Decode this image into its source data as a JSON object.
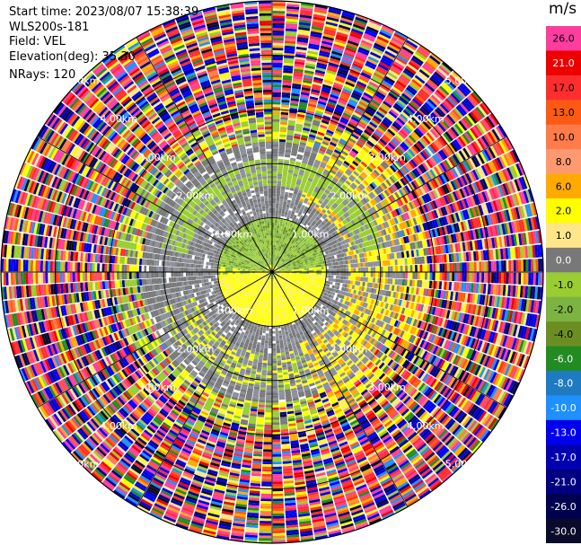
{
  "header": {
    "start_time": "Start time: 2023/08/07 15:38:39",
    "instrument": "WLS200s-181",
    "field": "Field: VEL",
    "elevation": "Elevation(deg): 35.30",
    "nrays": "NRays: 120"
  },
  "colorbar": {
    "unit": "m/s",
    "entries": [
      {
        "label": "26.0",
        "color": "#ff3d9e"
      },
      {
        "label": "21.0",
        "color": "#ee0000"
      },
      {
        "label": "17.0",
        "color": "#ff2e2e"
      },
      {
        "label": "13.0",
        "color": "#ff5a14"
      },
      {
        "label": "10.0",
        "color": "#ff7b4a"
      },
      {
        "label": "8.0",
        "color": "#ff9a70"
      },
      {
        "label": "6.0",
        "color": "#ffaa00"
      },
      {
        "label": "2.0",
        "color": "#ffff00"
      },
      {
        "label": "1.0",
        "color": "#ffe68a"
      },
      {
        "label": "0.0",
        "color": "#787878"
      },
      {
        "label": "-1.0",
        "color": "#9acd32"
      },
      {
        "label": "-2.0",
        "color": "#7cb342"
      },
      {
        "label": "-4.0",
        "color": "#6b8e23"
      },
      {
        "label": "-6.0",
        "color": "#228b22"
      },
      {
        "label": "-8.0",
        "color": "#1e7bc2"
      },
      {
        "label": "-10.0",
        "color": "#1e90ff"
      },
      {
        "label": "-13.0",
        "color": "#0000ee"
      },
      {
        "label": "-17.0",
        "color": "#0000b0"
      },
      {
        "label": "-21.0",
        "color": "#000080"
      },
      {
        "label": "-26.0",
        "color": "#000050"
      },
      {
        "label": "-30.0",
        "color": "#0a0a2a"
      }
    ]
  },
  "chart_data": {
    "type": "heatmap",
    "projection": "polar",
    "field": "VEL",
    "units": "m/s",
    "nrays": 120,
    "range_rings_km": [
      1.0,
      2.0,
      3.0,
      4.0,
      5.0
    ],
    "ring_labels": [
      "1.00km",
      "2.00km",
      "3.00km",
      "4.00km",
      "5.00km"
    ],
    "max_range_km": 5.0,
    "radial_lines_deg": [
      0,
      30,
      60,
      90,
      120,
      150,
      180,
      210,
      240,
      270,
      300,
      330
    ],
    "pattern": {
      "inner_zone_km": [
        0,
        1.0
      ],
      "inner_north_half": "-1.0 to -4.0 (olive/green)",
      "inner_south_half": "1.0 to 2.0 (yellow)",
      "mid_zone_km": [
        1.0,
        2.4
      ],
      "mid_values": "0.0 (gray) with -1.0 green and 2.0/6.0 yellow band on east side",
      "outer_zone_km": [
        2.4,
        5.0
      ],
      "outer_values": "noise across full scale -30.0 to 26.0"
    }
  }
}
